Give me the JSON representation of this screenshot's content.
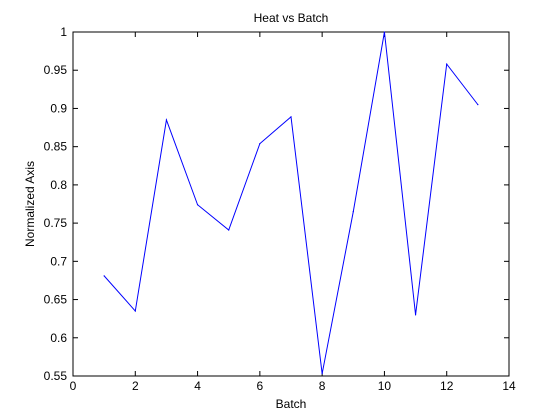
{
  "chart_data": {
    "type": "line",
    "title": "Heat vs Batch",
    "xlabel": "Batch",
    "ylabel": "Normalized Axis",
    "xlim": [
      0,
      14
    ],
    "ylim": [
      0.55,
      1
    ],
    "xticks": [
      0,
      2,
      4,
      6,
      8,
      10,
      12,
      14
    ],
    "yticks": [
      0.55,
      0.6,
      0.65,
      0.7,
      0.75,
      0.8,
      0.85,
      0.9,
      0.95,
      1
    ],
    "xtick_labels": [
      "0",
      "2",
      "4",
      "6",
      "8",
      "10",
      "12",
      "14"
    ],
    "ytick_labels": [
      "0.55",
      "0.6",
      "0.65",
      "0.7",
      "0.75",
      "0.8",
      "0.85",
      "0.9",
      "0.95",
      "1"
    ],
    "grid": false,
    "legend": false,
    "line_color": "#0000ff",
    "series": [
      {
        "x": [
          1,
          2,
          3,
          4,
          5,
          6,
          7,
          8,
          9,
          10,
          11,
          12,
          13
        ],
        "values": [
          0.681,
          0.635,
          0.885,
          0.774,
          0.741,
          0.854,
          0.889,
          0.553,
          0.765,
          1.0,
          0.63,
          0.958,
          0.905
        ]
      }
    ]
  }
}
